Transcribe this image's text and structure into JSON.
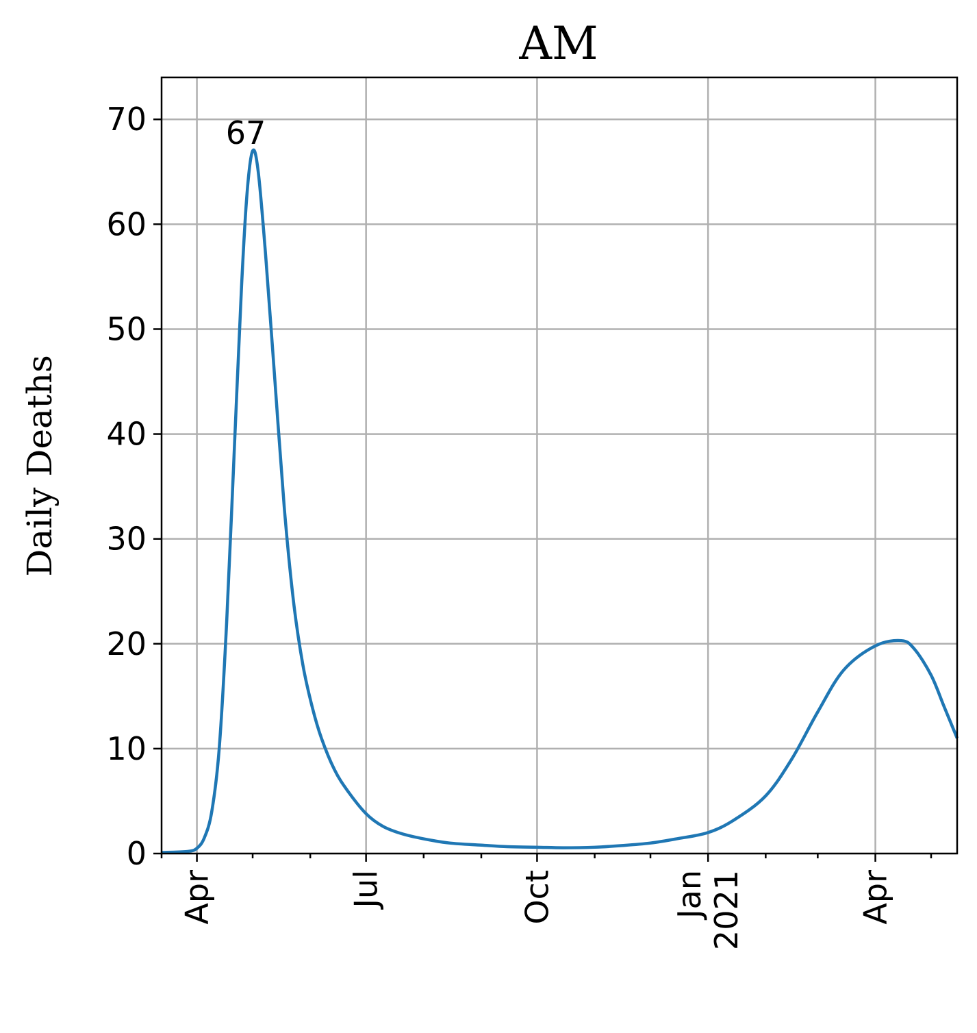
{
  "chart_data": {
    "type": "line",
    "title": "AM",
    "xlabel": "",
    "ylabel": "Daily Deaths",
    "ylim": [
      0,
      74
    ],
    "xlim": [
      "2020-03-13",
      "2021-05-15"
    ],
    "x_ticks": [
      {
        "date": "2020-04-01",
        "label": "Apr"
      },
      {
        "date": "2020-07-01",
        "label": "Jul"
      },
      {
        "date": "2020-10-01",
        "label": "Oct"
      },
      {
        "date": "2021-01-01",
        "label": "Jan\n2021"
      },
      {
        "date": "2021-04-01",
        "label": "Apr"
      }
    ],
    "x_minor_ticks": [
      "2020-05-01",
      "2020-06-01",
      "2020-08-01",
      "2020-09-01",
      "2020-11-01",
      "2020-12-01",
      "2021-02-01",
      "2021-03-01",
      "2021-05-01"
    ],
    "y_ticks": [
      0,
      10,
      20,
      30,
      40,
      50,
      60,
      70
    ],
    "grid": true,
    "series": [
      {
        "color": "#1f77b4",
        "points": [
          [
            "2020-03-13",
            0.1
          ],
          [
            "2020-03-27",
            0.2
          ],
          [
            "2020-04-01",
            0.5
          ],
          [
            "2020-04-05",
            1.5
          ],
          [
            "2020-04-09",
            4
          ],
          [
            "2020-04-13",
            10
          ],
          [
            "2020-04-17",
            22
          ],
          [
            "2020-04-21",
            38
          ],
          [
            "2020-04-25",
            54
          ],
          [
            "2020-04-28",
            63
          ],
          [
            "2020-05-01",
            67
          ],
          [
            "2020-05-04",
            65
          ],
          [
            "2020-05-08",
            57
          ],
          [
            "2020-05-13",
            45
          ],
          [
            "2020-05-18",
            33
          ],
          [
            "2020-05-23",
            24
          ],
          [
            "2020-05-28",
            18
          ],
          [
            "2020-06-02",
            14
          ],
          [
            "2020-06-07",
            11
          ],
          [
            "2020-06-14",
            8
          ],
          [
            "2020-06-21",
            6
          ],
          [
            "2020-07-01",
            3.8
          ],
          [
            "2020-07-10",
            2.6
          ],
          [
            "2020-07-20",
            1.9
          ],
          [
            "2020-08-01",
            1.4
          ],
          [
            "2020-08-15",
            1.0
          ],
          [
            "2020-09-01",
            0.8
          ],
          [
            "2020-09-15",
            0.65
          ],
          [
            "2020-10-01",
            0.6
          ],
          [
            "2020-10-15",
            0.55
          ],
          [
            "2020-11-01",
            0.6
          ],
          [
            "2020-11-15",
            0.75
          ],
          [
            "2020-12-01",
            1.0
          ],
          [
            "2020-12-15",
            1.4
          ],
          [
            "2021-01-01",
            2.0
          ],
          [
            "2021-01-15",
            3.2
          ],
          [
            "2021-02-01",
            5.5
          ],
          [
            "2021-02-15",
            9
          ],
          [
            "2021-03-01",
            13.5
          ],
          [
            "2021-03-15",
            17.5
          ],
          [
            "2021-04-01",
            19.8
          ],
          [
            "2021-04-15",
            20.3
          ],
          [
            "2021-04-22",
            19.5
          ],
          [
            "2021-05-01",
            17
          ],
          [
            "2021-05-08",
            14
          ],
          [
            "2021-05-15",
            11
          ]
        ]
      }
    ],
    "annotations": [
      {
        "date": "2020-05-01",
        "y": 67,
        "text": "67"
      }
    ]
  }
}
